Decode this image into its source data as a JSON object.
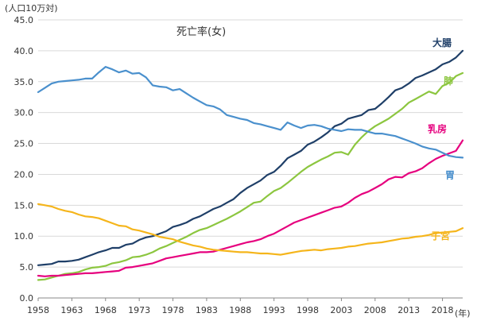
{
  "chart_data": {
    "type": "line",
    "title": "死亡率(女)",
    "ylabel": "(人口10万対)",
    "xlabel": "(年)",
    "ylim": [
      0,
      45
    ],
    "xlim": [
      1958,
      2021
    ],
    "y_ticks": [
      "0.0",
      "5.0",
      "10.0",
      "15.0",
      "20.0",
      "25.0",
      "30.0",
      "35.0",
      "40.0",
      "45.0"
    ],
    "x_ticks": [
      "1958",
      "1963",
      "1968",
      "1973",
      "1978",
      "1983",
      "1988",
      "1993",
      "1998",
      "2003",
      "2008",
      "2013",
      "2018"
    ],
    "grid": "horizontal",
    "x": [
      1958,
      1959,
      1960,
      1961,
      1962,
      1963,
      1964,
      1965,
      1966,
      1967,
      1968,
      1969,
      1970,
      1971,
      1972,
      1973,
      1974,
      1975,
      1976,
      1977,
      1978,
      1979,
      1980,
      1981,
      1982,
      1983,
      1984,
      1985,
      1986,
      1987,
      1988,
      1989,
      1990,
      1991,
      1992,
      1993,
      1994,
      1995,
      1996,
      1997,
      1998,
      1999,
      2000,
      2001,
      2002,
      2003,
      2004,
      2005,
      2006,
      2007,
      2008,
      2009,
      2010,
      2011,
      2012,
      2013,
      2014,
      2015,
      2016,
      2017,
      2018,
      2019,
      2020,
      2021
    ],
    "series": [
      {
        "name": "大腸",
        "color": "#1f3f68",
        "values": [
          5.3,
          5.4,
          5.5,
          5.9,
          5.9,
          6.0,
          6.2,
          6.6,
          7.0,
          7.4,
          7.7,
          8.1,
          8.1,
          8.6,
          8.8,
          9.4,
          9.8,
          10.0,
          10.4,
          10.8,
          11.5,
          11.8,
          12.2,
          12.8,
          13.2,
          13.8,
          14.4,
          14.8,
          15.4,
          16.0,
          17.0,
          17.8,
          18.4,
          19.0,
          19.9,
          20.4,
          21.4,
          22.6,
          23.2,
          23.8,
          24.8,
          25.3,
          26.0,
          26.8,
          27.8,
          28.2,
          29.0,
          29.3,
          29.6,
          30.4,
          30.6,
          31.5,
          32.5,
          33.6,
          34.0,
          34.7,
          35.6,
          36.0,
          36.5,
          37.0,
          37.8,
          38.2,
          38.9,
          40.0
        ]
      },
      {
        "name": "肺",
        "color": "#8cc63f",
        "values": [
          2.9,
          3.0,
          3.3,
          3.6,
          3.9,
          4.0,
          4.2,
          4.6,
          4.9,
          5.0,
          5.2,
          5.6,
          5.8,
          6.1,
          6.6,
          6.7,
          7.0,
          7.4,
          8.0,
          8.4,
          8.9,
          9.4,
          9.9,
          10.5,
          11.0,
          11.3,
          11.8,
          12.3,
          12.8,
          13.4,
          14.0,
          14.7,
          15.4,
          15.6,
          16.5,
          17.3,
          17.8,
          18.6,
          19.5,
          20.4,
          21.2,
          21.8,
          22.4,
          22.9,
          23.5,
          23.6,
          23.2,
          24.8,
          26.0,
          27.0,
          27.8,
          28.4,
          29.0,
          29.8,
          30.6,
          31.6,
          32.2,
          32.8,
          33.4,
          33.0,
          34.3,
          34.8,
          35.9,
          36.4
        ]
      },
      {
        "name": "乳房",
        "color": "#e6007e",
        "values": [
          3.6,
          3.5,
          3.6,
          3.6,
          3.7,
          3.8,
          3.9,
          4.0,
          4.0,
          4.1,
          4.2,
          4.3,
          4.4,
          4.9,
          5.0,
          5.2,
          5.4,
          5.6,
          6.0,
          6.4,
          6.6,
          6.8,
          7.0,
          7.2,
          7.4,
          7.4,
          7.5,
          7.8,
          8.1,
          8.4,
          8.7,
          9.0,
          9.2,
          9.5,
          10.0,
          10.4,
          11.0,
          11.6,
          12.2,
          12.6,
          13.0,
          13.4,
          13.8,
          14.2,
          14.6,
          14.8,
          15.4,
          16.2,
          16.8,
          17.2,
          17.8,
          18.4,
          19.2,
          19.6,
          19.5,
          20.2,
          20.5,
          21.0,
          21.8,
          22.5,
          23.0,
          23.4,
          23.8,
          25.5
        ]
      },
      {
        "name": "胃",
        "color": "#4a90cd",
        "values": [
          33.3,
          34.0,
          34.7,
          35.0,
          35.1,
          35.2,
          35.3,
          35.5,
          35.5,
          36.5,
          37.4,
          37.0,
          36.5,
          36.8,
          36.3,
          36.4,
          35.7,
          34.4,
          34.2,
          34.1,
          33.6,
          33.8,
          33.1,
          32.4,
          31.8,
          31.2,
          31.0,
          30.5,
          29.6,
          29.3,
          29.0,
          28.8,
          28.3,
          28.1,
          27.8,
          27.5,
          27.2,
          28.4,
          27.9,
          27.5,
          27.9,
          28.0,
          27.8,
          27.4,
          27.2,
          27.0,
          27.3,
          27.2,
          27.2,
          26.9,
          26.6,
          26.6,
          26.4,
          26.2,
          25.8,
          25.4,
          25.0,
          24.5,
          24.2,
          24.0,
          23.5,
          23.0,
          22.8,
          22.7
        ]
      },
      {
        "name": "子宮",
        "color": "#f5b51b",
        "values": [
          15.2,
          15.0,
          14.8,
          14.4,
          14.1,
          13.9,
          13.5,
          13.2,
          13.1,
          12.9,
          12.5,
          12.1,
          11.7,
          11.6,
          11.1,
          10.9,
          10.6,
          10.3,
          9.9,
          9.7,
          9.5,
          9.1,
          8.8,
          8.5,
          8.3,
          8.0,
          7.8,
          7.7,
          7.6,
          7.5,
          7.4,
          7.4,
          7.3,
          7.2,
          7.2,
          7.1,
          7.0,
          7.2,
          7.4,
          7.6,
          7.7,
          7.8,
          7.7,
          7.9,
          8.0,
          8.1,
          8.3,
          8.4,
          8.6,
          8.8,
          8.9,
          9.0,
          9.2,
          9.4,
          9.6,
          9.7,
          9.9,
          10.0,
          10.2,
          10.5,
          10.6,
          10.7,
          10.8,
          11.3
        ]
      }
    ]
  }
}
